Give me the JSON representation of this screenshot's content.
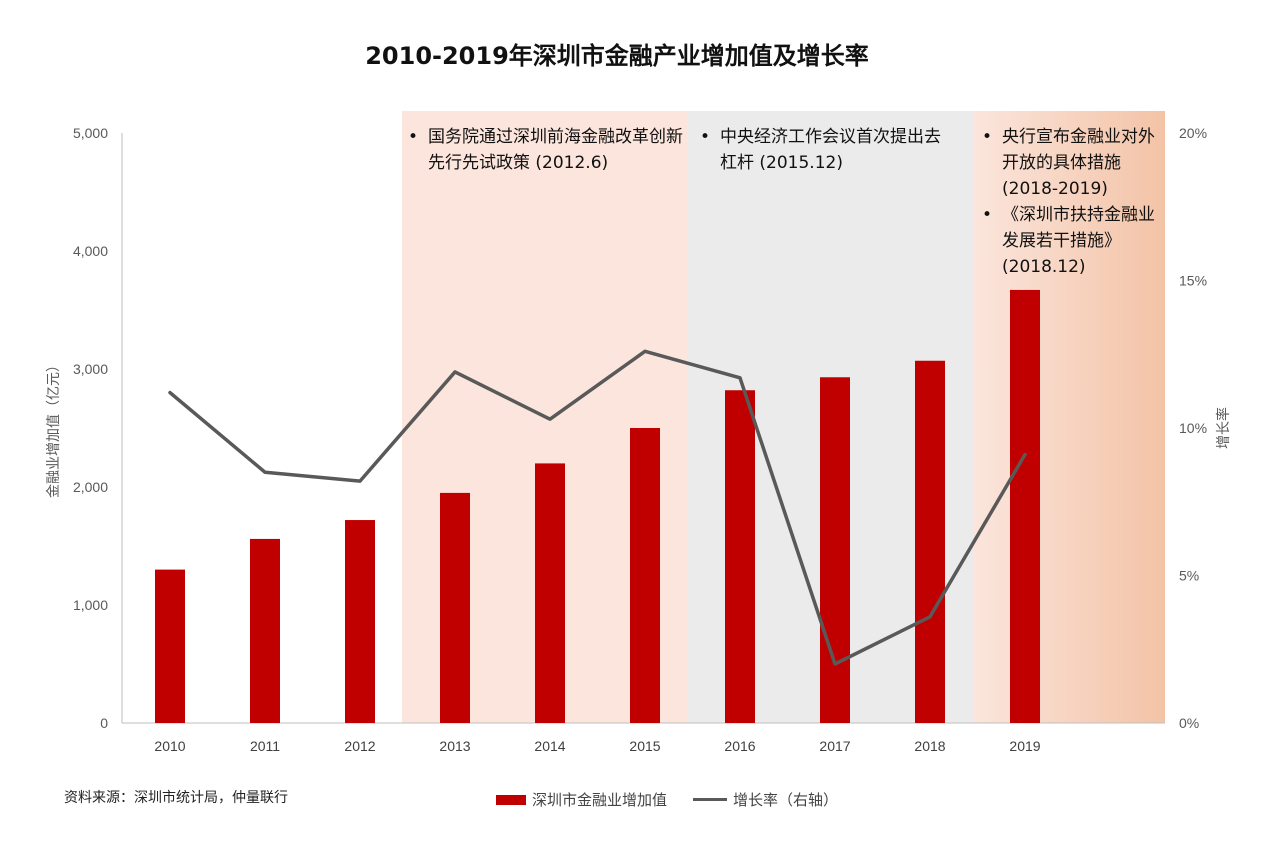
{
  "title": "2010-2019年深圳市金融产业增加值及增长率",
  "source": "资料来源：深圳市统计局，仲量联行",
  "legend": {
    "bar_label": "深圳市金融业增加值",
    "line_label": "增长率（右轴）"
  },
  "colors": {
    "bar": "#c00000",
    "line": "#595959",
    "phase1": "#fbe5dc",
    "phase2": "#ebebeb",
    "phase3_from": "#fbe5dc",
    "phase3_to": "#f3c3a6"
  },
  "annotations": [
    {
      "items": [
        "国务院通过深圳前海金融改革创新先行先试政策 (2012.6)"
      ]
    },
    {
      "items": [
        "中央经济工作会议首次提出去杠杆 (2015.12)"
      ]
    },
    {
      "items": [
        "央行宣布金融业对外开放的具体措施 (2018-2019)",
        "《深圳市扶持金融业发展若干措施》 (2018.12)"
      ]
    }
  ],
  "chart_data": {
    "type": "bar",
    "categories": [
      "2010",
      "2011",
      "2012",
      "2013",
      "2014",
      "2015",
      "2016",
      "2017",
      "2018",
      "2019"
    ],
    "series": [
      {
        "name": "深圳市金融业增加值",
        "type": "bar",
        "axis": "left",
        "values": [
          1300,
          1560,
          1720,
          1950,
          2200,
          2500,
          2820,
          2930,
          3070,
          3670
        ]
      },
      {
        "name": "增长率（右轴）",
        "type": "line",
        "axis": "right",
        "values": [
          11.2,
          8.5,
          8.2,
          11.9,
          10.3,
          12.6,
          11.7,
          2.0,
          3.6,
          9.1
        ]
      }
    ],
    "ylabel": "金融业增加值（亿元）",
    "y2label": "增长率",
    "ylim": [
      0,
      5000
    ],
    "y2lim": [
      0,
      20
    ],
    "yticks": [
      "0",
      "1,000",
      "2,000",
      "3,000",
      "4,000",
      "5,000"
    ],
    "y2ticks": [
      "0%",
      "5%",
      "10%",
      "15%",
      "20%"
    ],
    "grid": false,
    "legend_position": "bottom"
  }
}
